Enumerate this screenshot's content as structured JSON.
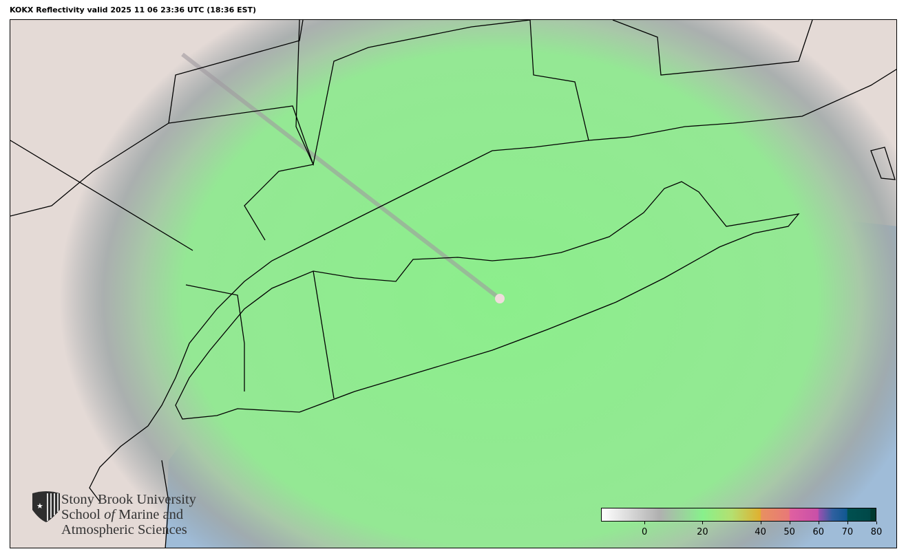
{
  "title": "KOKX Reflectivity valid 2025 11 06 23:36 UTC (18:36 EST)",
  "logo": {
    "line1": "Stony Brook University",
    "line2_a": "School ",
    "line2_b": "of",
    "line2_c": " Marine and",
    "line3": "Atmospheric Sciences"
  },
  "colorbar": {
    "min": -15,
    "max": 80,
    "ticks": [
      0,
      20,
      40,
      50,
      60,
      70,
      80
    ],
    "tick_labels": [
      "0",
      "20",
      "40",
      "50",
      "60",
      "70",
      "80"
    ]
  },
  "colors": {
    "ocean": "#9fbcd8",
    "land": "#e4dad6",
    "light_echo": "#8ef08e",
    "clutter": "#8a8a8a"
  },
  "radar_site": "KOKX"
}
